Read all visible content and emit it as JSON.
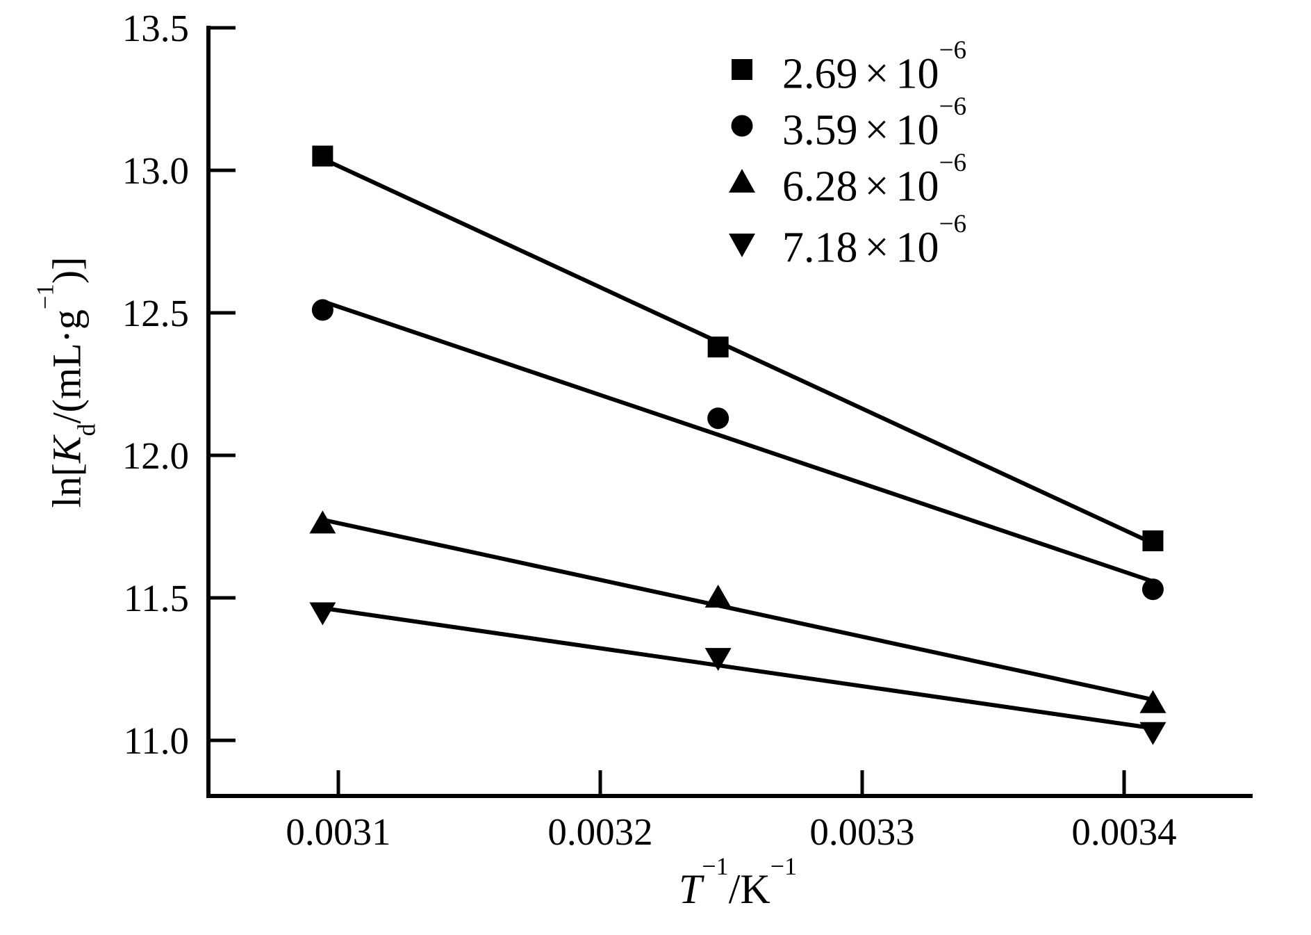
{
  "chart_data": {
    "type": "scatter",
    "title": "",
    "xlabel": "T^-1/K^-1",
    "ylabel": "ln[Kd/(mL·g^-1)]",
    "x": [
      0.003094,
      0.003245,
      0.003411
    ],
    "series": [
      {
        "name": "2.69×10⁻⁶",
        "marker": "square",
        "values": [
          13.05,
          12.38,
          11.7
        ]
      },
      {
        "name": "3.59×10⁻⁶",
        "marker": "circle",
        "values": [
          12.51,
          12.13,
          11.53
        ]
      },
      {
        "name": "6.28×10⁻⁶",
        "marker": "triangle-up",
        "values": [
          11.76,
          11.5,
          11.13
        ]
      },
      {
        "name": "7.18×10⁻⁶",
        "marker": "triangle-down",
        "values": [
          11.45,
          11.29,
          11.03
        ]
      }
    ],
    "has_fit_lines": true,
    "x_ticks": {
      "values": [
        0.0031,
        0.0032,
        0.0033,
        0.0034
      ],
      "labels": [
        "0.0031",
        "0.0032",
        "0.0033",
        "0.0034"
      ]
    },
    "y_ticks": {
      "values": [
        11.0,
        11.5,
        12.0,
        12.5,
        13.0,
        13.5
      ],
      "labels": [
        "11.0",
        "11.5",
        "12.0",
        "12.5",
        "13.0",
        "13.5"
      ]
    },
    "xlim": [
      0.00305,
      0.003449
    ],
    "ylim": [
      10.8,
      13.5
    ],
    "grid": false,
    "legend_position": "upper right"
  },
  "axis_labels": {
    "x": {
      "p1": "T",
      "p2": "−1",
      "p3": "/K",
      "p4": "−1"
    },
    "y": {
      "p1": "ln[",
      "p2": "K",
      "p3": "d",
      "p4": "/(mL·g",
      "p5": "−1",
      "p6": ")]"
    }
  },
  "legend": {
    "items": [
      {
        "marker": "square",
        "mantissa": "2.69",
        "times": "×",
        "base": "10",
        "exp": "−6"
      },
      {
        "marker": "circle",
        "mantissa": "3.59",
        "times": "×",
        "base": "10",
        "exp": "−6"
      },
      {
        "marker": "triangle-up",
        "mantissa": "6.28",
        "times": "×",
        "base": "10",
        "exp": "−6"
      },
      {
        "marker": "triangle-down",
        "mantissa": "7.18",
        "times": "×",
        "base": "10",
        "exp": "−6"
      }
    ]
  },
  "colors": {
    "foreground": "#000000",
    "background": "#ffffff"
  }
}
